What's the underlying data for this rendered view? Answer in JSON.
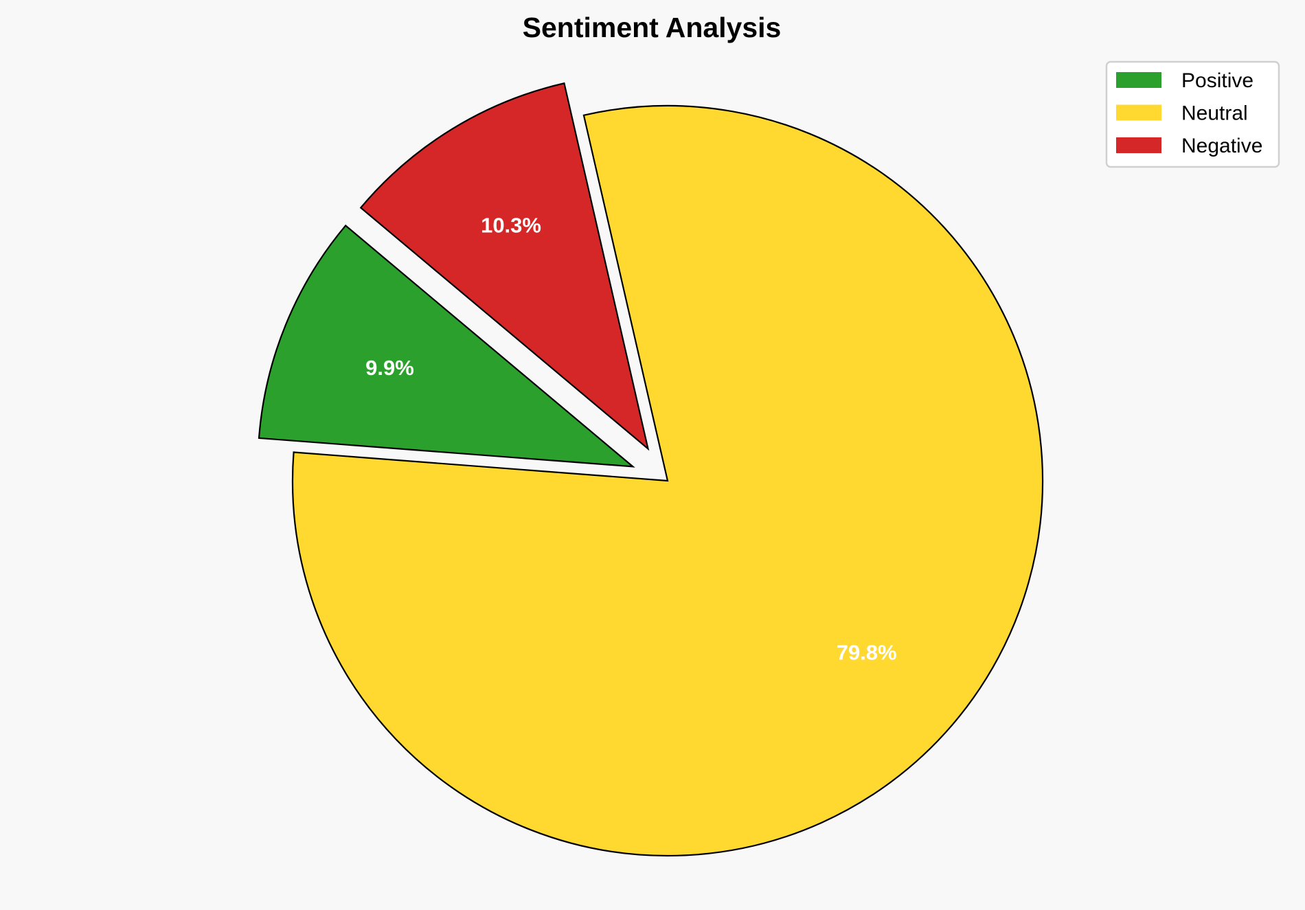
{
  "chart_data": {
    "type": "pie",
    "title": "Sentiment Analysis",
    "categories": [
      "Positive",
      "Neutral",
      "Negative"
    ],
    "values": [
      9.9,
      79.8,
      10.3
    ],
    "labels": [
      "9.9%",
      "79.8%",
      "10.3%"
    ],
    "colors": [
      "#2ca02c",
      "#ffd92f",
      "#d62728"
    ],
    "explode": [
      0.1,
      0,
      0.1
    ],
    "start_angle": 140,
    "direction": "counterclockwise",
    "legend": {
      "placement": "top-right",
      "entries": [
        "Positive",
        "Neutral",
        "Negative"
      ]
    },
    "background": "#f8f8f8",
    "edge_color": "#000000"
  }
}
